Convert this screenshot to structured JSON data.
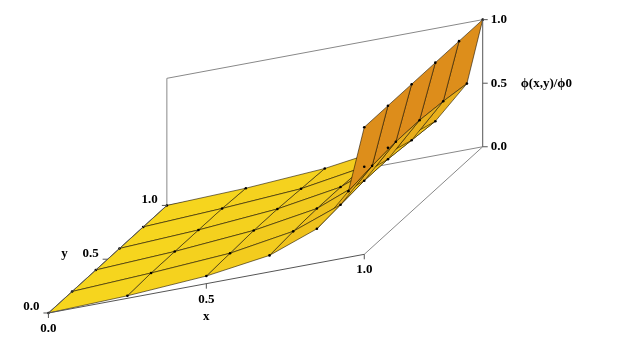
{
  "chart_data": {
    "type": "surface",
    "xlabel": "x",
    "ylabel": "y",
    "zlabel": "ϕ(x,y)/ϕ0",
    "x": [
      0,
      0.25,
      0.5,
      0.7,
      0.85,
      0.95,
      1
    ],
    "y": [
      0,
      0.2,
      0.4,
      0.6,
      0.8,
      1
    ],
    "z": [
      [
        0,
        0.02,
        0.06,
        0.13,
        0.27,
        0.52,
        1
      ],
      [
        0,
        0.03,
        0.07,
        0.15,
        0.29,
        0.55,
        1
      ],
      [
        0,
        0.03,
        0.08,
        0.16,
        0.31,
        0.57,
        1
      ],
      [
        0,
        0.03,
        0.08,
        0.16,
        0.31,
        0.57,
        1
      ],
      [
        0,
        0.03,
        0.07,
        0.15,
        0.29,
        0.55,
        1
      ],
      [
        0,
        0.02,
        0.06,
        0.13,
        0.27,
        0.52,
        1
      ]
    ],
    "xlim": [
      0,
      1
    ],
    "ylim": [
      0,
      1
    ],
    "zlim": [
      0,
      1
    ],
    "xticks": [
      {
        "value": 0,
        "label": "0.0"
      },
      {
        "value": 0.5,
        "label": "0.5"
      },
      {
        "value": 1,
        "label": "1.0"
      }
    ],
    "yticks": [
      {
        "value": 0,
        "label": "0.0"
      },
      {
        "value": 0.5,
        "label": "0.5"
      },
      {
        "value": 1,
        "label": "1.0"
      }
    ],
    "zticks": [
      {
        "value": 0,
        "label": "0.0"
      },
      {
        "value": 0.5,
        "label": "0.5"
      },
      {
        "value": 1,
        "label": "1.0"
      }
    ]
  }
}
